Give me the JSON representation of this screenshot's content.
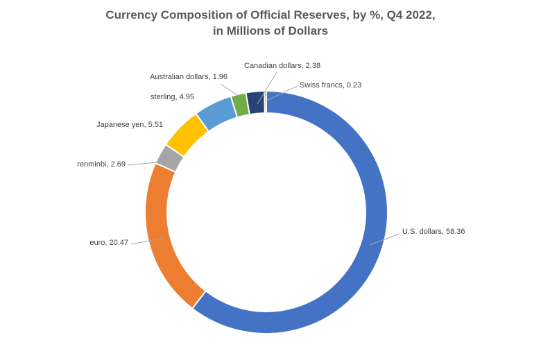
{
  "chart_data": {
    "type": "pie",
    "variant": "doughnut",
    "title_lines": [
      "Currency Composition of Official Reserves, by %, Q4 2022,",
      "in Millions of Dollars"
    ],
    "start": "12 o'clock, clockwise",
    "slices": [
      {
        "label": "U.S. dollars",
        "value": 58.36,
        "display": "U.S. dollars, 58.36",
        "color": "#4472C4"
      },
      {
        "label": "euro",
        "value": 20.47,
        "display": "euro, 20.47",
        "color": "#ED7D31"
      },
      {
        "label": "renminbi",
        "value": 2.69,
        "display": "renminbi, 2.69",
        "color": "#A5A5A5"
      },
      {
        "label": "Japanese yen",
        "value": 5.51,
        "display": "Japanese yen, 5.51",
        "color": "#FFC000"
      },
      {
        "label": "sterling",
        "value": 4.95,
        "display": "sterling, 4.95",
        "color": "#5B9BD5"
      },
      {
        "label": "Australian dollars",
        "value": 1.96,
        "display": "Australian dollars, 1.96",
        "color": "#70AD47"
      },
      {
        "label": "Canadian dollars",
        "value": 2.38,
        "display": "Canadian dollars, 2.38",
        "color": "#264478"
      },
      {
        "label": "Swiss francs",
        "value": 0.23,
        "display": "Swiss francs, 0.23",
        "color": "#9E480E"
      }
    ]
  }
}
